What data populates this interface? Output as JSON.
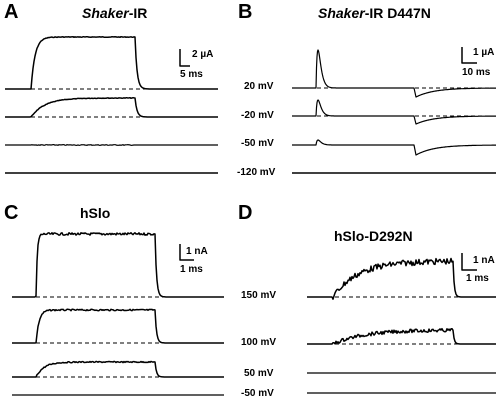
{
  "panels": [
    {
      "letter": "A",
      "title_italic": "Shaker",
      "title_rest": "-IR",
      "scale_y": "2 µA",
      "scale_x": "5 ms",
      "voltages": []
    },
    {
      "letter": "B",
      "title_italic": "Shaker",
      "title_rest": "-IR D447N",
      "scale_y": "1 µA",
      "scale_x": "10 ms",
      "voltages": [
        "20 mV",
        "-20 mV",
        "-50 mV",
        "-120 mV"
      ]
    },
    {
      "letter": "C",
      "title_italic": "",
      "title_rest": "hSlo",
      "scale_y": "1 nA",
      "scale_x": "1 ms",
      "voltages": []
    },
    {
      "letter": "D",
      "title_italic": "",
      "title_rest": "hSlo-D292N",
      "scale_y": "1 nA",
      "scale_x": "1 ms",
      "voltages": [
        "150 mV",
        "100 mV",
        "50 mV",
        "-50 mV"
      ]
    }
  ]
}
